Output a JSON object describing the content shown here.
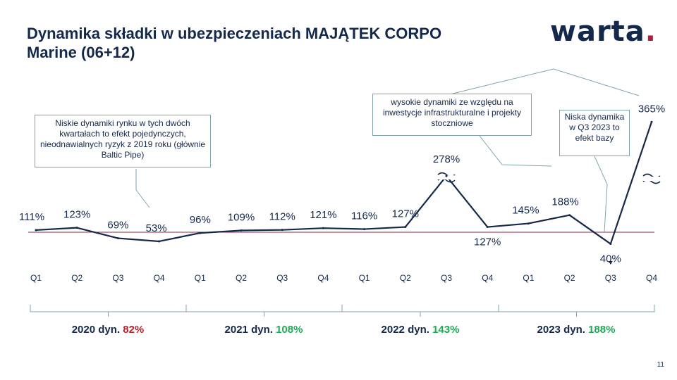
{
  "header": {
    "title_line1": "Dynamika składki w ubezpieczeniach MAJĄTEK CORPO",
    "title_line2": "Marine (06+12)",
    "logo_text": "warta",
    "logo_dot": ".",
    "page_number": "11"
  },
  "colors": {
    "navy": "#14284b",
    "baseline": "#8b2a4a",
    "accent_red": "#c0202a",
    "accent_green": "#1eaa55",
    "callout_border": "#7fa3ad"
  },
  "callouts": {
    "c1": "Niskie dynamiki rynku w tych dwóch kwartałach  to efekt pojedynczych, nieodnawialnych  ryzyk z 2019 roku (głównie Baltic Pipe)",
    "c2": "wysokie dynamiki ze względu na inwestycje infrastrukturalne  i projekty stoczniowe",
    "c3": "Niska dynamika w Q3 2023 to efekt bazy"
  },
  "years": [
    {
      "label": "2020 dyn.",
      "value": "82%",
      "tone": "neg"
    },
    {
      "label": "2021 dyn.",
      "value": "108%",
      "tone": "pos"
    },
    {
      "label": "2022 dyn.",
      "value": "143%",
      "tone": "pos"
    },
    {
      "label": "2023 dyn.",
      "value": "188%",
      "tone": "pos"
    }
  ],
  "chart_data": {
    "type": "line",
    "title": "Dynamika składki w ubezpieczeniach MAJĄTEK CORPO Marine (06+12)",
    "categories": [
      "Q1",
      "Q2",
      "Q3",
      "Q4",
      "Q1",
      "Q2",
      "Q3",
      "Q4",
      "Q1",
      "Q2",
      "Q3",
      "Q4",
      "Q1",
      "Q2",
      "Q3",
      "Q4"
    ],
    "values": [
      111,
      123,
      69,
      53,
      96,
      109,
      112,
      121,
      116,
      127,
      278,
      127,
      145,
      188,
      40,
      365
    ],
    "labels": [
      "111%",
      "123%",
      "69%",
      "53%",
      "96%",
      "109%",
      "112%",
      "121%",
      "116%",
      "127%",
      "278%",
      "127%",
      "145%",
      "188%",
      "40%",
      "365%"
    ],
    "axis_breaks_at_points": [
      10,
      15
    ],
    "reference_line": 100,
    "groups": [
      "2020",
      "2021",
      "2022",
      "2023"
    ],
    "xlabel": "",
    "ylabel": ""
  }
}
